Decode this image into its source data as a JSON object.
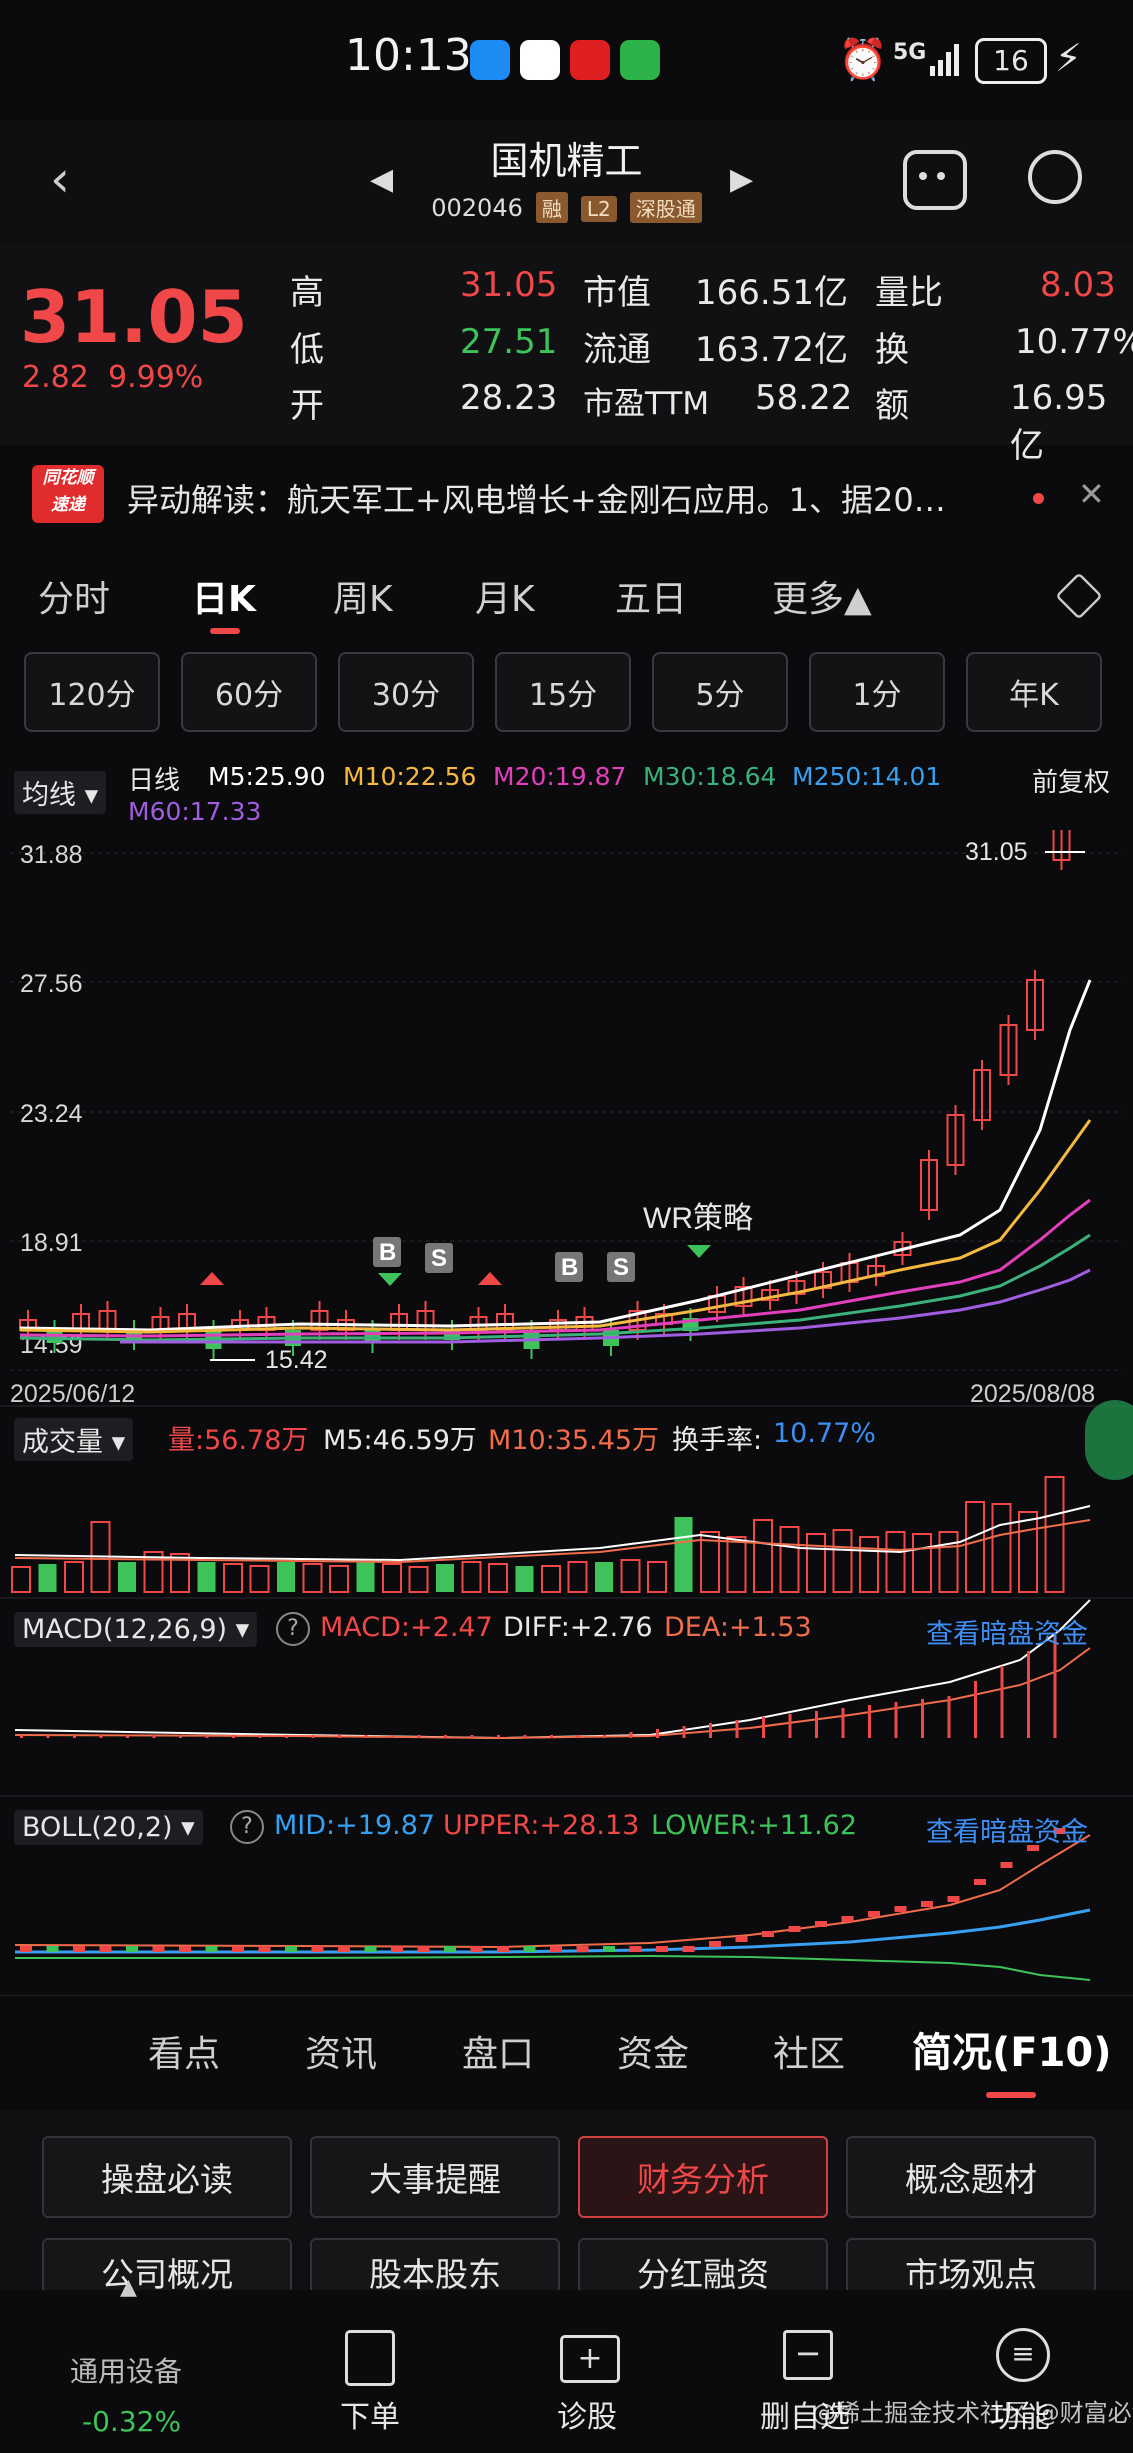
{
  "status_bar": {
    "time": "10:13",
    "signal": "5G",
    "battery": "16"
  },
  "header": {
    "title": "国机精工",
    "code": "002046",
    "tags": [
      "融",
      "L2",
      "深股通"
    ]
  },
  "quote": {
    "price": "31.05",
    "change": "2.82",
    "change_pct": "9.99%",
    "stats": [
      {
        "label": "高",
        "value": "31.05"
      },
      {
        "label": "低",
        "value": "27.51"
      },
      {
        "label": "开",
        "value": "28.23"
      },
      {
        "label": "市值",
        "value": "166.51亿"
      },
      {
        "label": "流通",
        "value": "163.72亿"
      },
      {
        "label": "市盈TTM",
        "value": "58.22"
      },
      {
        "label": "量比",
        "value": "8.03"
      },
      {
        "label": "换",
        "value": "10.77%"
      },
      {
        "label": "额",
        "value": "16.95亿"
      }
    ]
  },
  "news": {
    "brand_top": "同花顺",
    "brand_bottom": "速递",
    "text": "异动解读：航天军工+风电增长+金刚石应用。1、据20…"
  },
  "period_tabs": [
    "分时",
    "日K",
    "周K",
    "月K",
    "五日",
    "更多▲"
  ],
  "period_active": "日K",
  "minute_pills": [
    "120分",
    "60分",
    "30分",
    "15分",
    "5分",
    "1分",
    "年K"
  ],
  "ma_legend": {
    "selector": "均线",
    "label": "日线",
    "m5": "M5:25.90",
    "m10": "M10:22.56",
    "m20": "M20:19.87",
    "m30": "M30:18.64",
    "m250": "M250:14.01",
    "m60": "M60:17.33",
    "adjust": "前复权"
  },
  "price_axis": [
    "31.88",
    "27.56",
    "23.24",
    "18.91",
    "14.59"
  ],
  "price_annotations": {
    "high": "31.05",
    "low": "15.42",
    "strategy": "WR策略",
    "signals": [
      "B",
      "S",
      "B",
      "S"
    ]
  },
  "date_axis": {
    "start": "2025/06/12",
    "end": "2025/08/08"
  },
  "volume": {
    "selector": "成交量",
    "vol": "量:56.78万",
    "m5": "M5:46.59万",
    "m10": "M10:35.45万",
    "turnover_label": "换手率:",
    "turnover": "10.77%"
  },
  "macd": {
    "selector": "MACD(12,26,9)",
    "macd": "MACD:+2.47",
    "diff": "DIFF:+2.76",
    "dea": "DEA:+1.53",
    "link": "查看暗盘资金"
  },
  "boll": {
    "selector": "BOLL(20,2)",
    "mid": "MID:+19.87",
    "upper": "UPPER:+28.13",
    "lower": "LOWER:+11.62",
    "link": "查看暗盘资金"
  },
  "bottom_tabs": [
    "看点",
    "资讯",
    "盘口",
    "资金",
    "社区",
    "简况(F10)"
  ],
  "bottom_active": "简况(F10)",
  "f10_buttons": [
    "操盘必读",
    "大事提醒",
    "财务分析",
    "概念题材",
    "公司概况",
    "股本股东",
    "分红融资",
    "市场观点"
  ],
  "f10_active": "财务分析",
  "bottom_nav": {
    "sector": "通用设备",
    "sector_pct": "-0.32%",
    "items": [
      "下单",
      "诊股",
      "删自选",
      "功能"
    ],
    "watermark": "@稀土掘金技术社区 @财富必涨"
  },
  "colors": {
    "up": "#f04848",
    "down": "#3ec25a",
    "m5": "#ffffff",
    "m10": "#f5b942",
    "m20": "#e23fbd",
    "m30": "#3cb07a",
    "m250": "#38a0f0",
    "m60": "#a05de0",
    "link": "#3d8ef5"
  },
  "chart_data": {
    "type": "candlestick",
    "ylim": [
      14.59,
      31.88
    ],
    "x_range": [
      "2025/06/12",
      "2025/08/08"
    ],
    "last_close": 31.05,
    "period_low": 15.42
  }
}
